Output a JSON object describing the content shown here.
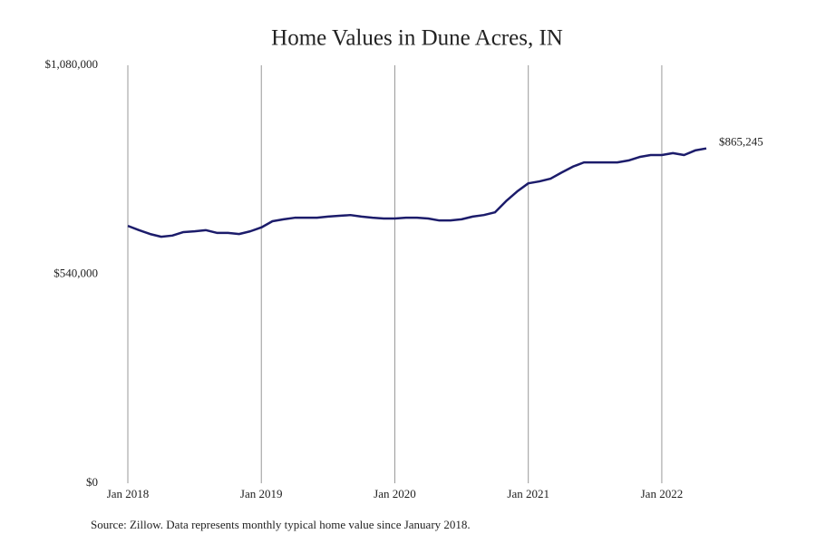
{
  "chart_data": {
    "type": "line",
    "title": "Home Values in Dune Acres, IN",
    "source": "Source: Zillow. Data represents monthly typical home value since January 2018.",
    "x": [
      "2018-01",
      "2018-02",
      "2018-03",
      "2018-04",
      "2018-05",
      "2018-06",
      "2018-07",
      "2018-08",
      "2018-09",
      "2018-10",
      "2018-11",
      "2018-12",
      "2019-01",
      "2019-02",
      "2019-03",
      "2019-04",
      "2019-05",
      "2019-06",
      "2019-07",
      "2019-08",
      "2019-09",
      "2019-10",
      "2019-11",
      "2019-12",
      "2020-01",
      "2020-02",
      "2020-03",
      "2020-04",
      "2020-05",
      "2020-06",
      "2020-07",
      "2020-08",
      "2020-09",
      "2020-10",
      "2020-11",
      "2020-12",
      "2021-01",
      "2021-02",
      "2021-03",
      "2021-04",
      "2021-05",
      "2021-06",
      "2021-07",
      "2021-08",
      "2021-09",
      "2021-10",
      "2021-11",
      "2021-12",
      "2022-01",
      "2022-02",
      "2022-03",
      "2022-04",
      "2022-05"
    ],
    "values": [
      665000,
      654000,
      644000,
      637000,
      640000,
      649000,
      651000,
      654000,
      647000,
      647000,
      644000,
      651000,
      661000,
      677000,
      682000,
      686000,
      686000,
      686000,
      689000,
      691000,
      693000,
      689000,
      686000,
      684000,
      684000,
      686000,
      686000,
      684000,
      679000,
      679000,
      682000,
      689000,
      693000,
      700000,
      729000,
      754000,
      775000,
      780000,
      787000,
      803000,
      818000,
      829000,
      829000,
      829000,
      829000,
      834000,
      843000,
      848000,
      848000,
      853000,
      848000,
      860000,
      865245
    ],
    "value_labels": [
      null,
      null,
      null,
      null,
      null,
      null,
      null,
      null,
      null,
      null,
      null,
      null,
      null,
      null,
      null,
      null,
      null,
      null,
      null,
      null,
      null,
      null,
      null,
      null,
      null,
      null,
      null,
      null,
      null,
      null,
      null,
      null,
      null,
      null,
      null,
      null,
      null,
      null,
      null,
      null,
      null,
      null,
      null,
      null,
      null,
      null,
      null,
      null,
      null,
      null,
      null,
      null,
      "$865,245"
    ],
    "color": "#1c1c6b",
    "xlim": [
      "2018-01",
      "2022-05"
    ],
    "xticks": [
      {
        "value": "2018-01",
        "label": "Jan 2018"
      },
      {
        "value": "2019-01",
        "label": "Jan 2019"
      },
      {
        "value": "2020-01",
        "label": "Jan 2020"
      },
      {
        "value": "2021-01",
        "label": "Jan 2021"
      },
      {
        "value": "2022-01",
        "label": "Jan 2022"
      }
    ],
    "ylim": [
      0,
      1080000
    ],
    "yticks": [
      {
        "value": 0,
        "label": "$0"
      },
      {
        "value": 540000,
        "label": "$540,000"
      },
      {
        "value": 1080000,
        "label": "$1,080,000"
      }
    ],
    "grid": "x"
  }
}
